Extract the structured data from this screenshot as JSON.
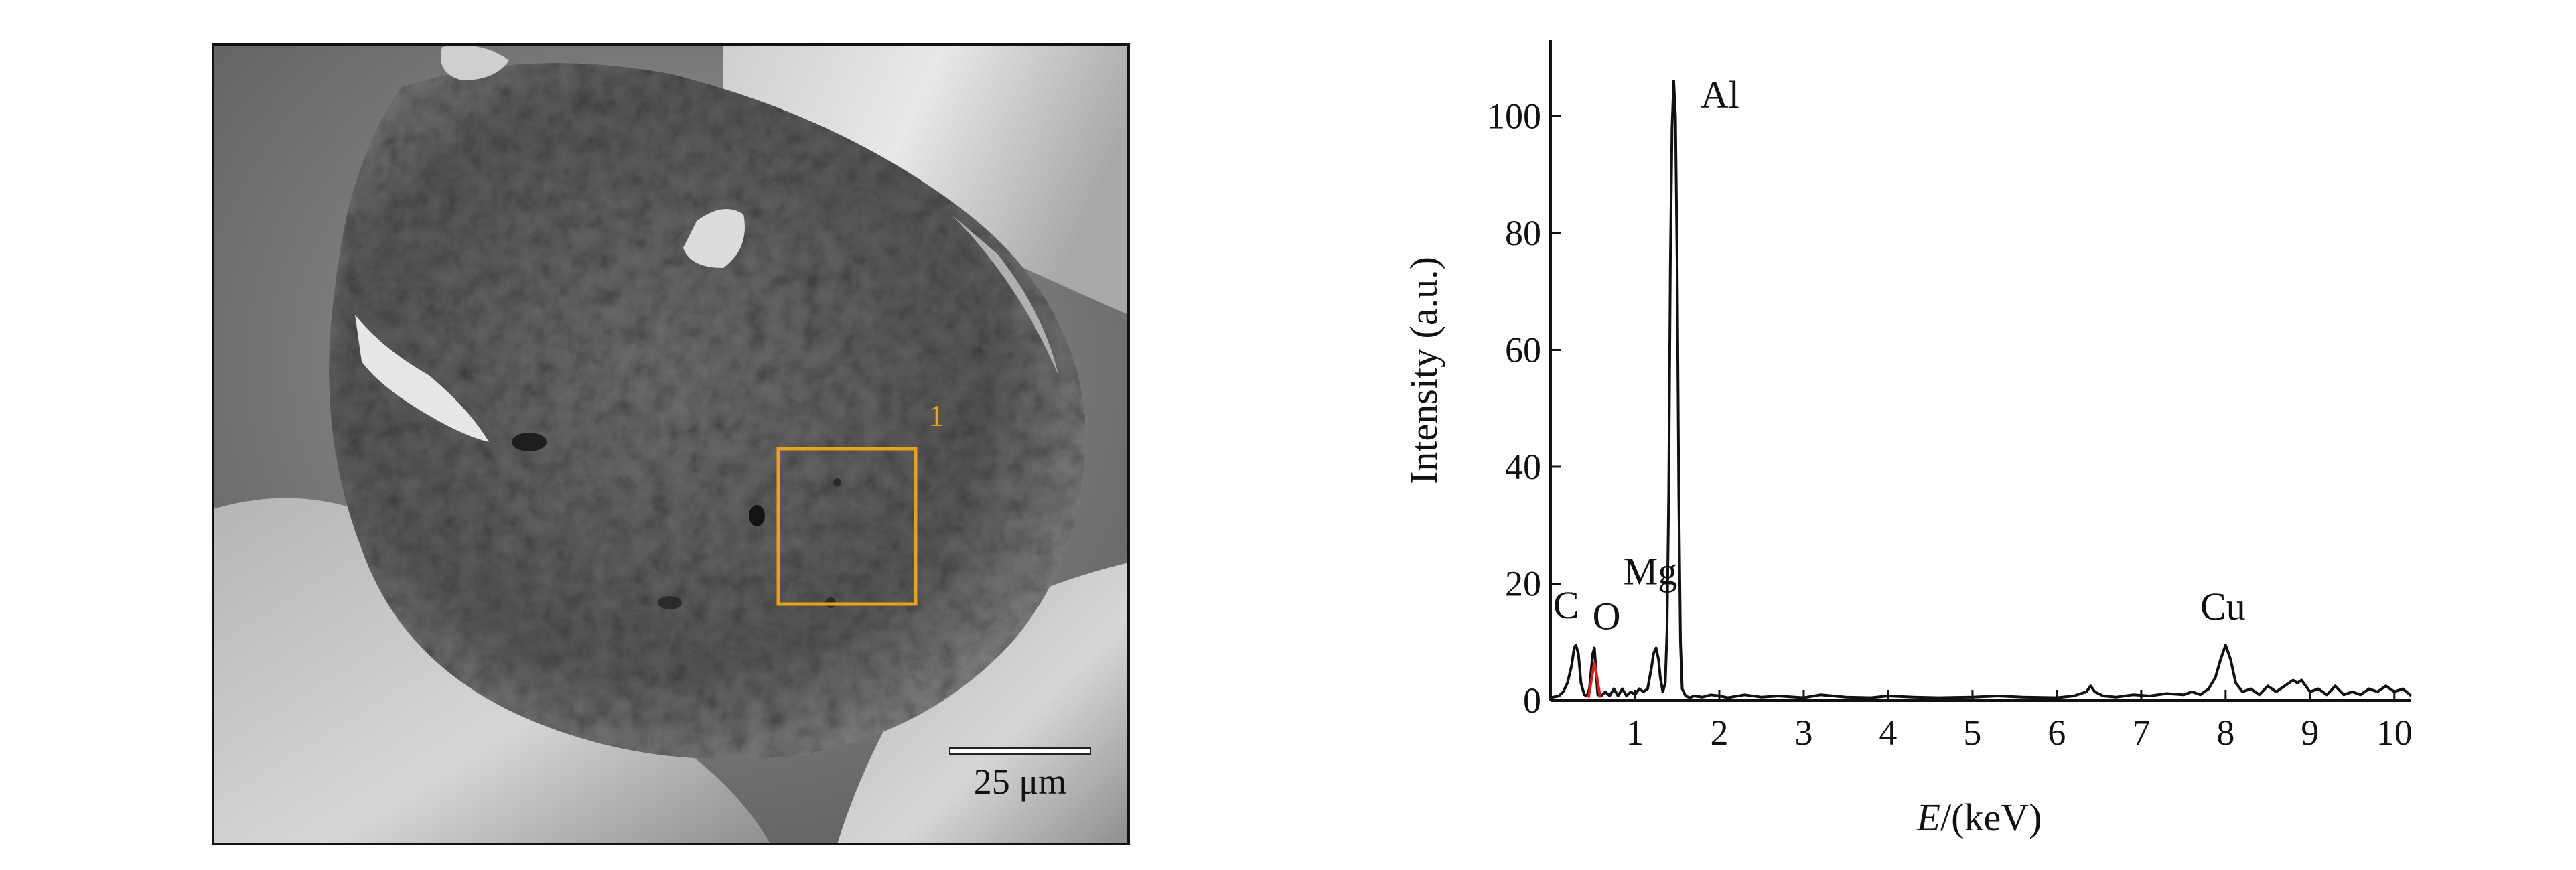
{
  "sem_panel": {
    "region_label": "1",
    "region_color": "#e8a317",
    "scale_bar_label": "25 μm"
  },
  "chart_data": {
    "type": "line",
    "title": "",
    "xlabel": "E/(keV)",
    "ylabel": "Intensity  (a.u.)",
    "xlim": [
      0,
      10.2
    ],
    "ylim": [
      0,
      113
    ],
    "xticks": [
      1,
      2,
      3,
      4,
      5,
      6,
      7,
      8,
      9,
      10
    ],
    "yticks": [
      0,
      20,
      40,
      60,
      80,
      100
    ],
    "grid": false,
    "legend": "none",
    "series": [
      {
        "color": "#111111",
        "x": [
          0.0,
          0.1,
          0.15,
          0.2,
          0.25,
          0.28,
          0.3,
          0.33,
          0.36,
          0.4,
          0.43,
          0.46,
          0.5,
          0.52,
          0.54,
          0.56,
          0.6,
          0.65,
          0.7,
          0.75,
          0.8,
          0.85,
          0.9,
          0.95,
          1.0,
          1.05,
          1.1,
          1.15,
          1.2,
          1.22,
          1.25,
          1.28,
          1.3,
          1.33,
          1.36,
          1.38,
          1.4,
          1.42,
          1.44,
          1.46,
          1.48,
          1.5,
          1.52,
          1.54,
          1.56,
          1.6,
          1.65,
          1.7,
          1.8,
          1.9,
          2.0,
          2.1,
          2.3,
          2.5,
          2.7,
          3.0,
          3.2,
          3.5,
          3.8,
          4.0,
          4.3,
          4.6,
          5.0,
          5.3,
          5.6,
          6.0,
          6.2,
          6.35,
          6.4,
          6.45,
          6.55,
          6.7,
          6.9,
          7.1,
          7.3,
          7.5,
          7.6,
          7.7,
          7.8,
          7.88,
          7.94,
          8.0,
          8.06,
          8.12,
          8.2,
          8.3,
          8.4,
          8.5,
          8.6,
          8.7,
          8.8,
          8.85,
          8.9,
          9.0,
          9.1,
          9.2,
          9.3,
          9.4,
          9.5,
          9.6,
          9.7,
          9.8,
          9.9,
          10.0,
          10.1,
          10.2
        ],
        "y": [
          0.5,
          0.8,
          1.5,
          3,
          6,
          9,
          9.5,
          8,
          3,
          1,
          0.8,
          2,
          8,
          9,
          5,
          1,
          0.8,
          1.5,
          0.8,
          2,
          0.8,
          2,
          0.8,
          1.5,
          1,
          2,
          1.5,
          2,
          6,
          8,
          9,
          7,
          4,
          1.5,
          3,
          12,
          35,
          75,
          98,
          106,
          100,
          75,
          35,
          10,
          2,
          0.8,
          0.5,
          0.8,
          0.6,
          1,
          0.8,
          0.5,
          1,
          0.6,
          0.8,
          0.5,
          1,
          0.6,
          0.5,
          0.8,
          0.6,
          0.5,
          0.6,
          0.8,
          0.6,
          0.5,
          0.8,
          1.5,
          2.5,
          1.5,
          0.8,
          0.6,
          1,
          0.8,
          1.2,
          1,
          1.5,
          1,
          2,
          4,
          7,
          9.5,
          7,
          3,
          1.5,
          2,
          1,
          2.5,
          1.5,
          2.5,
          3.5,
          3,
          3.5,
          1.5,
          2,
          1,
          2.5,
          1,
          1.5,
          1,
          2,
          1.5,
          2.5,
          1.5,
          2,
          0.8
        ]
      },
      {
        "color": "#d62020",
        "x": [
          0.45,
          0.49,
          0.52,
          0.55,
          0.59
        ],
        "y": [
          0.5,
          4,
          6.5,
          4,
          0.5
        ]
      }
    ],
    "annotations": [
      {
        "text": "Al",
        "x": 1.46,
        "y": 106
      },
      {
        "text": "Mg",
        "x": 1.23,
        "y": 9
      },
      {
        "text": "C",
        "x": 0.28,
        "y": 9.5
      },
      {
        "text": "O",
        "x": 0.52,
        "y": 9
      },
      {
        "text": "Cu",
        "x": 8.0,
        "y": 9.5
      }
    ]
  }
}
